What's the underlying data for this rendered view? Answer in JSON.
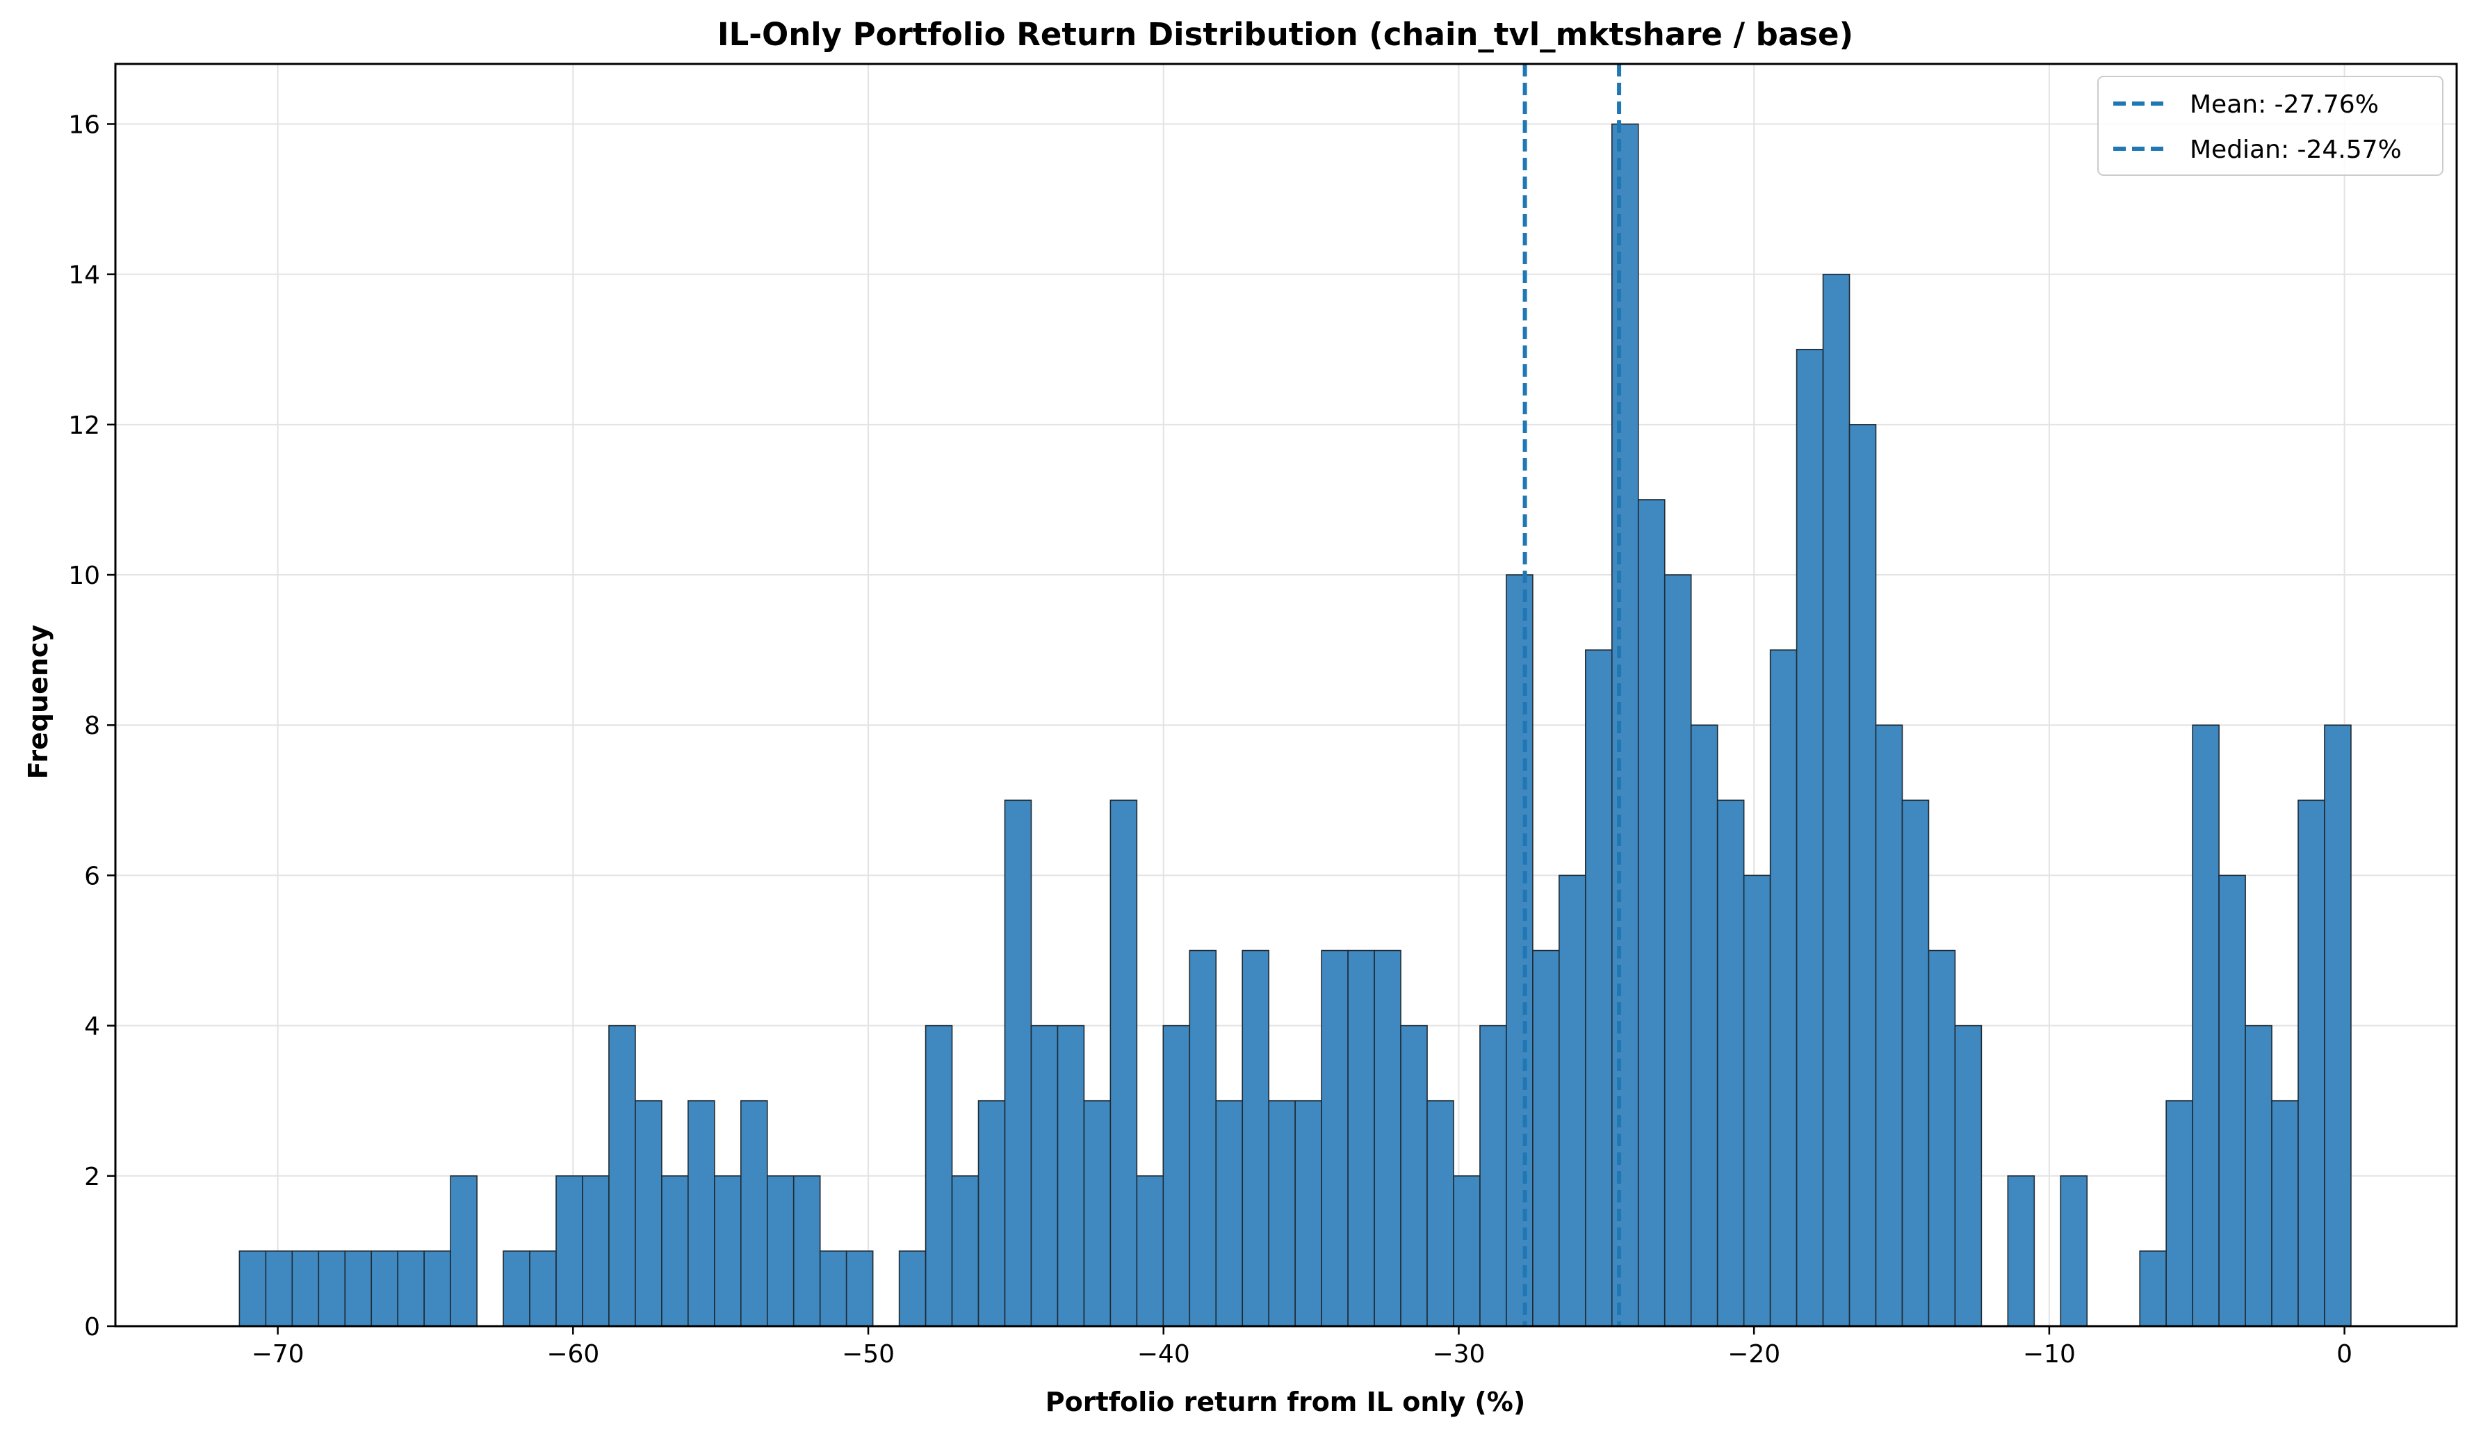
{
  "chart_data": {
    "type": "bar",
    "title": "IL-Only Portfolio Return Distribution (chain_tvl_mktshare / base)",
    "xlabel": "Portfolio return from IL only (%)",
    "ylabel": "Frequency",
    "xlim": [
      -75.5,
      3.8
    ],
    "ylim": [
      0,
      16.8
    ],
    "xticks": [
      -70,
      -60,
      -50,
      -40,
      -30,
      -20,
      -10,
      0
    ],
    "xtick_labels": [
      "−70",
      "−60",
      "−50",
      "−40",
      "−30",
      "−20",
      "−10",
      "0"
    ],
    "yticks": [
      0,
      2,
      4,
      6,
      8,
      10,
      12,
      14,
      16
    ],
    "ytick_labels": [
      "0",
      "2",
      "4",
      "6",
      "8",
      "10",
      "12",
      "14",
      "16"
    ],
    "grid": true,
    "legend_position": "top-right",
    "bar_color": "#3f89c0",
    "bar_edge_color": "#1f2a33",
    "line_color": "#1f77b4",
    "bin_start": -71.3,
    "bin_width": 0.894,
    "counts": [
      1,
      1,
      1,
      1,
      1,
      1,
      1,
      1,
      2,
      0,
      1,
      1,
      2,
      2,
      4,
      3,
      2,
      3,
      2,
      3,
      2,
      2,
      1,
      1,
      0,
      1,
      4,
      2,
      3,
      7,
      4,
      4,
      3,
      7,
      2,
      4,
      5,
      3,
      5,
      3,
      3,
      5,
      5,
      5,
      4,
      3,
      2,
      4,
      10,
      5,
      6,
      9,
      16,
      11,
      10,
      8,
      7,
      6,
      9,
      13,
      14,
      12,
      8,
      7,
      5,
      4,
      0,
      2,
      0,
      2,
      0,
      0,
      1,
      3,
      8,
      6,
      4,
      3,
      7,
      8
    ],
    "vlines": [
      {
        "label": "Mean: -27.76%",
        "x": -27.76
      },
      {
        "label": "Median: -24.57%",
        "x": -24.57
      }
    ]
  }
}
